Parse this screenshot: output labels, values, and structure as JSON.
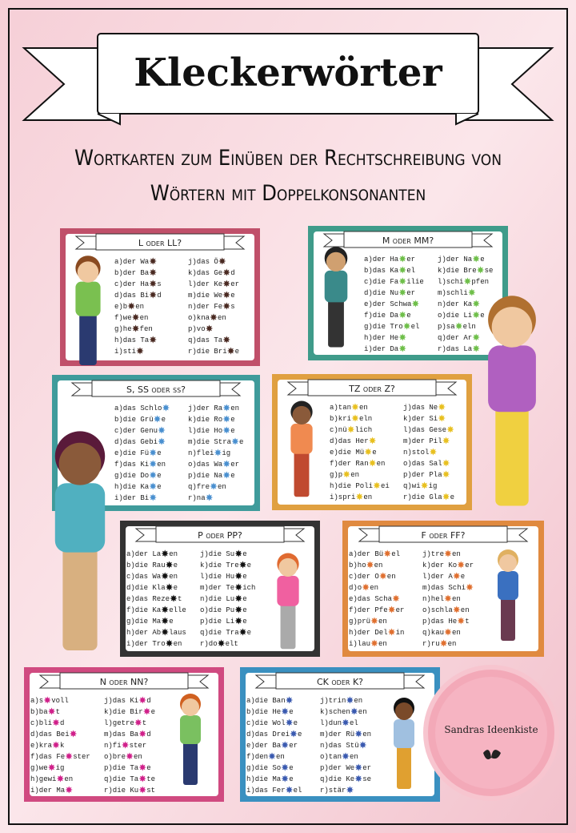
{
  "header": {
    "title": "Kleckerwörter",
    "subtitle_lines": [
      "Wortkarten zum Einüben der Rechtschreibung von",
      "Wörtern mit Doppelkonsonanten"
    ]
  },
  "cards": [
    {
      "title": "L oder LL?",
      "left": [
        [
          "a)der Wa",
          ""
        ],
        [
          "b)der Ba",
          ""
        ],
        [
          "c)der Ha",
          "s"
        ],
        [
          "d)das Bi",
          "d"
        ],
        [
          "e)b",
          "en"
        ],
        [
          "f)we",
          "en"
        ],
        [
          "g)he",
          "fen"
        ],
        [
          "h)das Ta",
          ""
        ],
        [
          "i)sti",
          ""
        ]
      ],
      "right": [
        [
          "j)das Ö",
          ""
        ],
        [
          "k)das Ge",
          "d"
        ],
        [
          "l)der Ke",
          "er"
        ],
        [
          "m)die We",
          "e"
        ],
        [
          "n)der Fe",
          "s"
        ],
        [
          "o)kna",
          "en"
        ],
        [
          "p)vo",
          ""
        ],
        [
          "q)das Ta",
          ""
        ],
        [
          "r)die Bri",
          "e"
        ]
      ]
    },
    {
      "title": "M oder MM?",
      "left": [
        [
          "a)der Ha",
          "er"
        ],
        [
          "b)das Ka",
          "el"
        ],
        [
          "c)die Fa",
          "ilie"
        ],
        [
          "d)die Nu",
          "er"
        ],
        [
          "e)der Schwa",
          ""
        ],
        [
          "f)die Da",
          "e"
        ],
        [
          "g)die Tro",
          "el"
        ],
        [
          "h)der He",
          ""
        ],
        [
          "i)der Da",
          ""
        ]
      ],
      "right": [
        [
          "j)der Na",
          "e"
        ],
        [
          "k)die Bre",
          "se"
        ],
        [
          "l)schi",
          "pfen"
        ],
        [
          "m)schli",
          ""
        ],
        [
          "n)der Ka",
          ""
        ],
        [
          "o)die Li",
          "e"
        ],
        [
          "p)sa",
          "eln"
        ],
        [
          "q)der Ar",
          ""
        ],
        [
          "r)das La",
          ""
        ]
      ]
    },
    {
      "title": "S, SS oder ß?",
      "left": [
        [
          "a)das Schlo",
          ""
        ],
        [
          "b)die Grü",
          "e"
        ],
        [
          "c)der Genu",
          ""
        ],
        [
          "d)das Gebi",
          ""
        ],
        [
          "e)die Fü",
          "e"
        ],
        [
          "f)das Ki",
          "en"
        ],
        [
          "g)die Do",
          "e"
        ],
        [
          "h)die Ka",
          "e"
        ],
        [
          "i)der Bi",
          ""
        ]
      ],
      "right": [
        [
          "j)der Ra",
          "en"
        ],
        [
          "k)die Ro",
          "e"
        ],
        [
          "l)die Ho",
          "e"
        ],
        [
          "m)die Stra",
          "e"
        ],
        [
          "n)flei",
          "ig"
        ],
        [
          "o)das Wa",
          "er"
        ],
        [
          "p)die Na",
          "e"
        ],
        [
          "q)fre",
          "en"
        ],
        [
          "r)na",
          ""
        ]
      ]
    },
    {
      "title": "TZ oder Z?",
      "left": [
        [
          "a)tan",
          "en"
        ],
        [
          "b)kri",
          "eln"
        ],
        [
          "c)nü",
          "lich"
        ],
        [
          "d)das Her",
          ""
        ],
        [
          "e)die Mü",
          "e"
        ],
        [
          "f)der Ran",
          "en"
        ],
        [
          "g)p",
          "en"
        ],
        [
          "h)die Poli",
          "ei"
        ],
        [
          "i)spri",
          "en"
        ]
      ],
      "right": [
        [
          "j)das Ne",
          ""
        ],
        [
          "k)der Si",
          ""
        ],
        [
          "l)das Gese",
          ""
        ],
        [
          "m)der Pil",
          ""
        ],
        [
          "n)stol",
          ""
        ],
        [
          "o)das Sal",
          ""
        ],
        [
          "p)der Pla",
          ""
        ],
        [
          "q)wi",
          "ig"
        ],
        [
          "r)die Gla",
          "e"
        ]
      ]
    },
    {
      "title": "P oder PP?",
      "left": [
        [
          "a)der La",
          "en"
        ],
        [
          "b)die Rau",
          "e"
        ],
        [
          "c)das Wa",
          "en"
        ],
        [
          "d)die Kla",
          "e"
        ],
        [
          "e)das Reze",
          "t"
        ],
        [
          "f)die Ka",
          "elle"
        ],
        [
          "g)die Ma",
          "e"
        ],
        [
          "h)der Ab",
          "laus"
        ],
        [
          "i)der Tro",
          "en"
        ]
      ],
      "right": [
        [
          "j)die Su",
          "e"
        ],
        [
          "k)die Tre",
          "e"
        ],
        [
          "l)die Hu",
          "e"
        ],
        [
          "m)der Te",
          "ich"
        ],
        [
          "n)die Lu",
          "e"
        ],
        [
          "o)die Pu",
          "e"
        ],
        [
          "p)die Li",
          "e"
        ],
        [
          "q)die Tra",
          "e"
        ],
        [
          "r)do",
          "elt"
        ]
      ]
    },
    {
      "title": "F oder FF?",
      "left": [
        [
          "a)der Bü",
          "el"
        ],
        [
          "b)ho",
          "en"
        ],
        [
          "c)der O",
          "en"
        ],
        [
          "d)o",
          "en"
        ],
        [
          "e)das Scha",
          ""
        ],
        [
          "f)der Pfe",
          "er"
        ],
        [
          "g)prü",
          "en"
        ],
        [
          "h)der Del",
          "in"
        ],
        [
          "i)lau",
          "en"
        ]
      ],
      "right": [
        [
          "j)tre",
          "en"
        ],
        [
          "k)der Ko",
          "er"
        ],
        [
          "l)der A",
          "e"
        ],
        [
          "m)das Schi",
          ""
        ],
        [
          "n)hel",
          "en"
        ],
        [
          "o)schla",
          "en"
        ],
        [
          "p)das He",
          "t"
        ],
        [
          "q)kau",
          "en"
        ],
        [
          "r)ru",
          "en"
        ]
      ]
    },
    {
      "title": "N oder NN?",
      "left": [
        [
          "a)s",
          "voll"
        ],
        [
          "b)ba",
          "t"
        ],
        [
          "c)bli",
          "d"
        ],
        [
          "d)das Bei",
          ""
        ],
        [
          "e)kra",
          "k"
        ],
        [
          "f)das Fe",
          "ster"
        ],
        [
          "g)we",
          "ig"
        ],
        [
          "h)gewi",
          "en"
        ],
        [
          "i)der Ma",
          ""
        ]
      ],
      "right": [
        [
          "j)das Ki",
          "d"
        ],
        [
          "k)die Bir",
          "e"
        ],
        [
          "l)getre",
          "t"
        ],
        [
          "m)das Ba",
          "d"
        ],
        [
          "n)fi",
          "ster"
        ],
        [
          "o)bre",
          "en"
        ],
        [
          "p)die Ta",
          "e"
        ],
        [
          "q)die Ta",
          "te"
        ],
        [
          "r)die Ku",
          "st"
        ]
      ]
    },
    {
      "title": "CK oder K?",
      "left": [
        [
          "a)die Ban",
          ""
        ],
        [
          "b)die He",
          "e"
        ],
        [
          "c)die Wol",
          "e"
        ],
        [
          "d)das Drei",
          "e"
        ],
        [
          "e)der Ba",
          "er"
        ],
        [
          "f)den",
          "en"
        ],
        [
          "g)die So",
          "e"
        ],
        [
          "h)die Ma",
          "e"
        ],
        [
          "i)das Fer",
          "el"
        ]
      ],
      "right": [
        [
          "j)trin",
          "en"
        ],
        [
          "k)schen",
          "en"
        ],
        [
          "l)dun",
          "el"
        ],
        [
          "m)der Rü",
          "en"
        ],
        [
          "n)das Stü",
          ""
        ],
        [
          "o)tan",
          "en"
        ],
        [
          "p)der We",
          "er"
        ],
        [
          "q)die Ke",
          "se"
        ],
        [
          "r)stär",
          ""
        ]
      ]
    }
  ],
  "logo": {
    "text": "Sandras Ideenkiste"
  }
}
